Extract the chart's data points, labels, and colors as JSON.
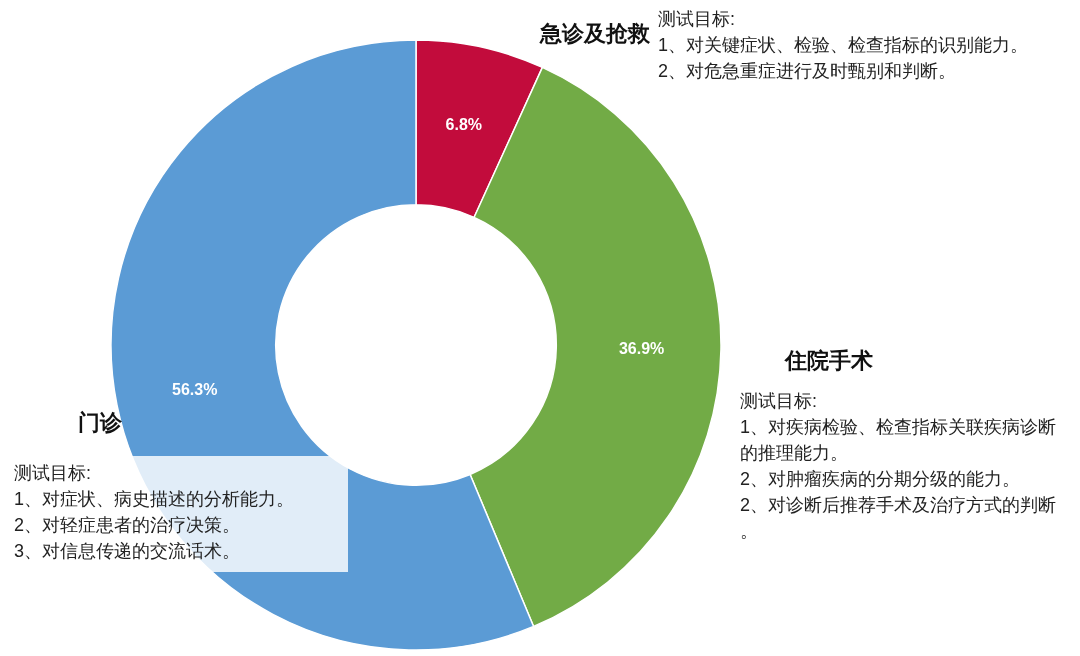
{
  "chart_data": {
    "type": "donut",
    "categories": [
      "急诊及抢救",
      "住院手术",
      "门诊"
    ],
    "values": [
      6.8,
      36.9,
      56.3
    ],
    "colors": [
      "#c20c3c",
      "#72ab46",
      "#5b9bd5"
    ],
    "value_labels": [
      "6.8%",
      "36.9%",
      "56.3%"
    ],
    "legend": false,
    "annotations": [
      "测试目标:\n1、对关键症状、检验、检查指标的识别能力。\n2、对危急重症进行及时甄别和判断。",
      "测试目标:\n1、对疾病检验、检查指标关联疾病诊断的推理能力。\n2、对肿瘤疾病的分期分级的能力。\n2、对诊断后推荐手术及治疗方式的判断。",
      "测试目标:\n1、对症状、病史描述的分析能力。\n2、对轻症患者的治疗决策。\n3、对信息传递的交流话术。"
    ]
  }
}
